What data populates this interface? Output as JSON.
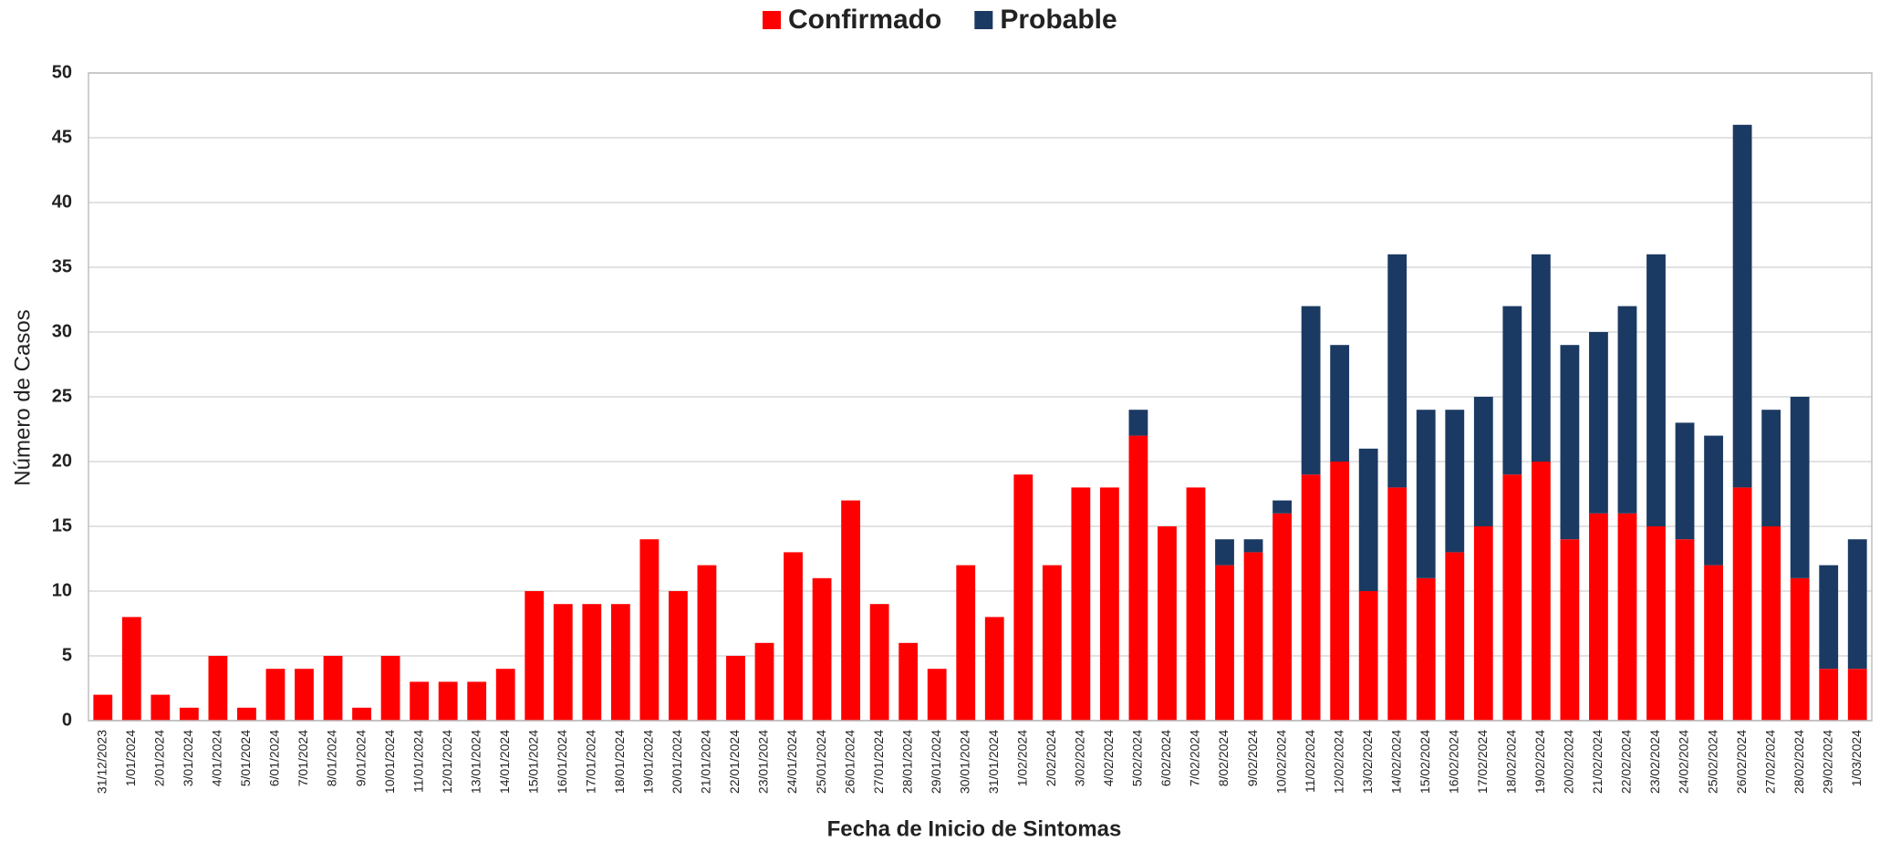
{
  "chart_data": {
    "type": "stacked_bar",
    "x_label": "Fecha de Inicio de Sintomas",
    "y_label": "Número de Casos",
    "categories": [
      "31/12/2023",
      "1/01/2024",
      "2/01/2024",
      "3/01/2024",
      "4/01/2024",
      "5/01/2024",
      "6/01/2024",
      "7/01/2024",
      "8/01/2024",
      "9/01/2024",
      "10/01/2024",
      "11/01/2024",
      "12/01/2024",
      "13/01/2024",
      "14/01/2024",
      "15/01/2024",
      "16/01/2024",
      "17/01/2024",
      "18/01/2024",
      "19/01/2024",
      "20/01/2024",
      "21/01/2024",
      "22/01/2024",
      "23/01/2024",
      "24/01/2024",
      "25/01/2024",
      "26/01/2024",
      "27/01/2024",
      "28/01/2024",
      "29/01/2024",
      "30/01/2024",
      "31/01/2024",
      "1/02/2024",
      "2/02/2024",
      "3/02/2024",
      "4/02/2024",
      "5/02/2024",
      "6/02/2024",
      "7/02/2024",
      "8/02/2024",
      "9/02/2024",
      "10/02/2024",
      "11/02/2024",
      "12/02/2024",
      "13/02/2024",
      "14/02/2024",
      "15/02/2024",
      "16/02/2024",
      "17/02/2024",
      "18/02/2024",
      "19/02/2024",
      "20/02/2024",
      "21/02/2024",
      "22/02/2024",
      "23/02/2024",
      "24/02/2024",
      "25/02/2024",
      "26/02/2024",
      "27/02/2024",
      "28/02/2024",
      "29/02/2024",
      "1/03/2024"
    ],
    "series": [
      {
        "name": "Confirmado",
        "color": "#ff0000",
        "values": [
          2,
          8,
          2,
          1,
          5,
          1,
          4,
          4,
          5,
          1,
          5,
          3,
          3,
          3,
          4,
          10,
          9,
          9,
          9,
          14,
          10,
          12,
          5,
          6,
          13,
          11,
          17,
          9,
          6,
          4,
          12,
          8,
          19,
          12,
          18,
          18,
          22,
          15,
          18,
          12,
          13,
          16,
          19,
          20,
          10,
          18,
          11,
          13,
          15,
          19,
          20,
          14,
          16,
          16,
          15,
          14,
          12,
          18,
          15,
          11,
          4,
          4
        ]
      },
      {
        "name": "Probable",
        "color": "#1b3a63",
        "values": [
          0,
          0,
          0,
          0,
          0,
          0,
          0,
          0,
          0,
          0,
          0,
          0,
          0,
          0,
          0,
          0,
          0,
          0,
          0,
          0,
          0,
          0,
          0,
          0,
          0,
          0,
          0,
          0,
          0,
          0,
          0,
          0,
          0,
          0,
          0,
          0,
          2,
          0,
          0,
          2,
          1,
          1,
          13,
          9,
          11,
          18,
          13,
          11,
          10,
          13,
          16,
          15,
          14,
          16,
          21,
          9,
          10,
          28,
          9,
          14,
          8,
          10
        ]
      }
    ],
    "ylim": [
      0,
      50
    ],
    "yticks": [
      0,
      5,
      10,
      15,
      20,
      25,
      30,
      35,
      40,
      45,
      50
    ],
    "grid": true,
    "legend": "top"
  }
}
